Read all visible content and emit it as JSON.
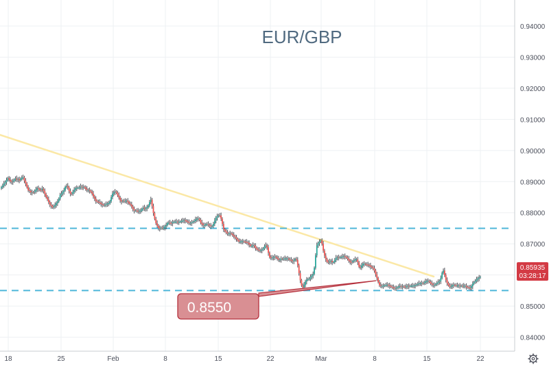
{
  "chart_data": {
    "type": "candlestick",
    "title": "EUR/GBP",
    "x_tick_labels": [
      "18",
      "25",
      "Feb",
      "8",
      "15",
      "22",
      "Mar",
      "8",
      "15",
      "22"
    ],
    "y_tick_labels": [
      "0.94000",
      "0.93000",
      "0.92000",
      "0.91000",
      "0.90000",
      "0.89000",
      "0.88000",
      "0.87000",
      "0.86000",
      "0.85000",
      "0.84000"
    ],
    "ylim": [
      0.8355,
      0.9455
    ],
    "grid": true,
    "last_price_label": "0.85935",
    "countdown_label": "03:28:17",
    "annotation_label": "0.8550",
    "horizontal_levels": [
      0.875,
      0.855
    ],
    "closes": [
      0.8882,
      0.8887,
      0.8893,
      0.8898,
      0.8905,
      0.8911,
      0.8906,
      0.8901,
      0.8899,
      0.8901,
      0.8906,
      0.891,
      0.8906,
      0.8908,
      0.8904,
      0.8909,
      0.8913,
      0.8913,
      0.8903,
      0.8894,
      0.8882,
      0.8872,
      0.887,
      0.8865,
      0.8866,
      0.8865,
      0.8868,
      0.8874,
      0.8879,
      0.8877,
      0.8873,
      0.8872,
      0.8877,
      0.887,
      0.886,
      0.885,
      0.8843,
      0.8834,
      0.8826,
      0.8822,
      0.8817,
      0.882,
      0.8824,
      0.8831,
      0.8836,
      0.8845,
      0.8857,
      0.8861,
      0.8867,
      0.8872,
      0.8883,
      0.8886,
      0.8881,
      0.887,
      0.8862,
      0.886,
      0.8867,
      0.8873,
      0.8879,
      0.888,
      0.888,
      0.8881,
      0.8884,
      0.8882,
      0.8883,
      0.8881,
      0.8876,
      0.8873,
      0.8873,
      0.8871,
      0.8867,
      0.8861,
      0.8852,
      0.8845,
      0.8838,
      0.8835,
      0.8834,
      0.8832,
      0.8828,
      0.8826,
      0.8824,
      0.8825,
      0.8827,
      0.883,
      0.883,
      0.8837,
      0.885,
      0.8861,
      0.8866,
      0.8868,
      0.8864,
      0.8856,
      0.8849,
      0.884,
      0.8836,
      0.8838,
      0.8837,
      0.8837,
      0.8839,
      0.8835,
      0.8829,
      0.8826,
      0.882,
      0.8812,
      0.8807,
      0.8807,
      0.8806,
      0.8804,
      0.8806,
      0.8806,
      0.8812,
      0.8816,
      0.8812,
      0.8814,
      0.8817,
      0.8823,
      0.8834,
      0.8842,
      0.8821,
      0.8799,
      0.878,
      0.8766,
      0.8758,
      0.8751,
      0.8749,
      0.8752,
      0.8751,
      0.8751,
      0.8756,
      0.876,
      0.8767,
      0.8768,
      0.8767,
      0.8766,
      0.8769,
      0.8771,
      0.8771,
      0.8771,
      0.877,
      0.8771,
      0.8771,
      0.8774,
      0.8774,
      0.8776,
      0.8775,
      0.8772,
      0.8769,
      0.8767,
      0.8767,
      0.8769,
      0.8771,
      0.8773,
      0.8778,
      0.8781,
      0.8781,
      0.8777,
      0.8768,
      0.8763,
      0.876,
      0.876,
      0.8763,
      0.8763,
      0.8761,
      0.8759,
      0.8757,
      0.8757,
      0.8764,
      0.8774,
      0.8784,
      0.8789,
      0.8792,
      0.8791,
      0.878,
      0.8764,
      0.8747,
      0.8741,
      0.8736,
      0.8733,
      0.8733,
      0.8734,
      0.8732,
      0.8728,
      0.8724,
      0.8721,
      0.8716,
      0.8711,
      0.8707,
      0.8707,
      0.8708,
      0.8708,
      0.8707,
      0.8706,
      0.8705,
      0.8703,
      0.8698,
      0.8693,
      0.8693,
      0.8696,
      0.8694,
      0.8687,
      0.8682,
      0.868,
      0.8679,
      0.8679,
      0.8681,
      0.8685,
      0.8692,
      0.8695,
      0.8689,
      0.8671,
      0.8657,
      0.8654,
      0.8655,
      0.8657,
      0.8659,
      0.8656,
      0.8652,
      0.8649,
      0.8649,
      0.8652,
      0.8651,
      0.8652,
      0.8653,
      0.8653,
      0.8653,
      0.865,
      0.8648,
      0.8646,
      0.8644,
      0.8647,
      0.8651,
      0.8648,
      0.8631,
      0.8606,
      0.8583,
      0.8566,
      0.856,
      0.8568,
      0.8579,
      0.8585,
      0.8587,
      0.8587,
      0.8593,
      0.8598,
      0.8603,
      0.8623,
      0.8663,
      0.8695,
      0.8702,
      0.8707,
      0.8711,
      0.87,
      0.8678,
      0.8662,
      0.8651,
      0.8642,
      0.864,
      0.8643,
      0.8645,
      0.8641,
      0.8641,
      0.8648,
      0.8655,
      0.8657,
      0.8656,
      0.8657,
      0.8657,
      0.8659,
      0.8661,
      0.8659,
      0.8656,
      0.8652,
      0.8646,
      0.8642,
      0.8641,
      0.8644,
      0.8647,
      0.865,
      0.865,
      0.8641,
      0.8626,
      0.8623,
      0.863,
      0.8636,
      0.8636,
      0.8634,
      0.8633,
      0.8632,
      0.8631,
      0.8627,
      0.8624,
      0.8621,
      0.8614,
      0.8602,
      0.859,
      0.8577,
      0.8567,
      0.8565,
      0.8565,
      0.8565,
      0.8567,
      0.8568,
      0.8568,
      0.8567,
      0.8565,
      0.8562,
      0.856,
      0.8559,
      0.8558,
      0.8558,
      0.856,
      0.8563,
      0.8564,
      0.8563,
      0.8563,
      0.8562,
      0.8561,
      0.8563,
      0.8565,
      0.8564,
      0.8565,
      0.8565,
      0.8565,
      0.8566,
      0.8567,
      0.8569,
      0.8571,
      0.8573,
      0.8573,
      0.8574,
      0.8573,
      0.8575,
      0.8579,
      0.8581,
      0.8581,
      0.8578,
      0.8573,
      0.857,
      0.8568,
      0.8568,
      0.857,
      0.8574,
      0.8577,
      0.858,
      0.859,
      0.8607,
      0.8614,
      0.86,
      0.8584,
      0.8574,
      0.8567,
      0.8562,
      0.8563,
      0.8567,
      0.8568,
      0.8567,
      0.8566,
      0.8566,
      0.8566,
      0.8565,
      0.8565,
      0.8564,
      0.8565,
      0.8565,
      0.8562,
      0.856,
      0.8559,
      0.8558,
      0.8564,
      0.8572,
      0.8577,
      0.858,
      0.8585,
      0.8589,
      0.8592,
      0.8594
    ]
  }
}
